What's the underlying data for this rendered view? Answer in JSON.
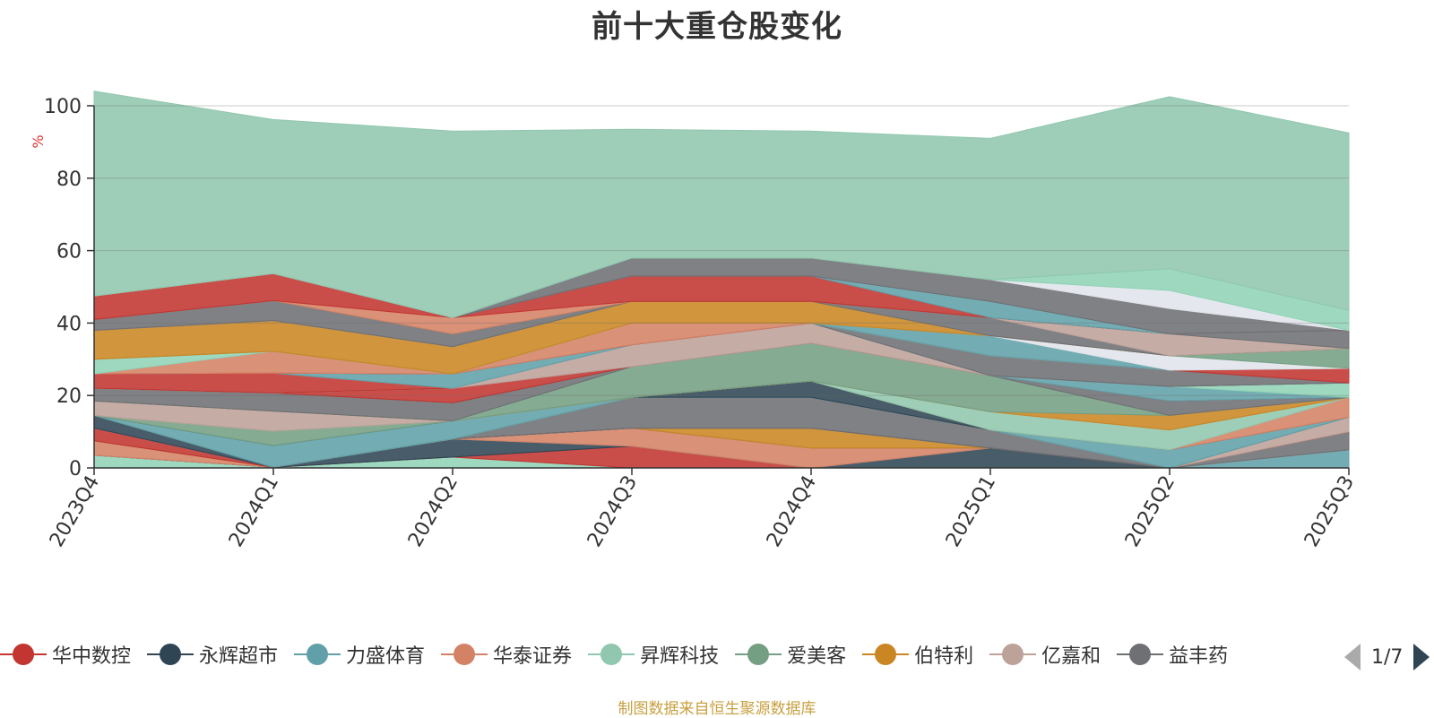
{
  "title": "前十大重仓股变化",
  "footnote": "制图数据来自恒生聚源数据库",
  "pager": {
    "text": "1/7"
  },
  "chart_data": {
    "type": "area",
    "stacked": true,
    "categories": [
      "2023Q4",
      "2024Q1",
      "2024Q2",
      "2024Q3",
      "2024Q4",
      "2025Q1",
      "2025Q2",
      "2025Q3"
    ],
    "ylabel": "%",
    "ylim": [
      0,
      100
    ],
    "yticks": [
      0,
      20,
      40,
      60,
      80,
      100
    ],
    "legend_position": "bottom",
    "legend": [
      "华中数控",
      "永辉超市",
      "力盛体育",
      "华泰证券",
      "昇辉科技",
      "爱美客",
      "伯特利",
      "亿嘉和",
      "益丰药"
    ],
    "series": [
      {
        "name": "",
        "color": "#8fd3b6",
        "values": [
          3.5,
          0.2,
          3.0,
          0.0,
          0.0,
          0.0,
          0.0,
          0.0
        ]
      },
      {
        "name": "",
        "color": "#c23531",
        "values": [
          0.0,
          0.0,
          0.0,
          6.0,
          0.0,
          0.0,
          0.0,
          0.0
        ]
      },
      {
        "name": "",
        "color": "#2f4554",
        "values": [
          0.0,
          0.0,
          5.0,
          0.0,
          0.0,
          5.5,
          0.0,
          0.0
        ]
      },
      {
        "name": "",
        "color": "#61a0a8",
        "values": [
          0.0,
          0.0,
          0.0,
          0.0,
          0.0,
          0.0,
          0.0,
          5.0
        ]
      },
      {
        "name": "",
        "color": "#d48265",
        "values": [
          4.0,
          0.0,
          0.0,
          5.0,
          5.5,
          0.0,
          0.0,
          0.0
        ]
      },
      {
        "name": "",
        "color": "#6e7074",
        "values": [
          0.0,
          0.0,
          0.0,
          0.0,
          0.0,
          0.0,
          0.0,
          5.0
        ]
      },
      {
        "name": "",
        "color": "#ca8622",
        "values": [
          0.0,
          0.0,
          0.0,
          0.0,
          5.5,
          0.0,
          0.0,
          0.0
        ]
      },
      {
        "name": "",
        "color": "#c23531",
        "values": [
          3.5,
          0.0,
          0.0,
          0.0,
          0.0,
          0.0,
          0.0,
          0.0
        ]
      },
      {
        "name": "",
        "color": "#bda29a",
        "values": [
          0.0,
          0.0,
          0.0,
          0.0,
          0.0,
          0.0,
          0.0,
          4.0
        ]
      },
      {
        "name": "",
        "color": "#2f4554",
        "values": [
          3.5,
          0.0,
          0.0,
          0.0,
          0.0,
          0.0,
          0.0,
          0.0
        ]
      },
      {
        "name": "",
        "color": "#6e7074",
        "values": [
          0.0,
          0.0,
          0.0,
          8.5,
          8.5,
          5.0,
          0.0,
          0.0
        ]
      },
      {
        "name": "",
        "color": "#91c7ae",
        "values": [
          0.0,
          0.0,
          0.0,
          0.0,
          0.0,
          0.0,
          0.0,
          0.0
        ]
      },
      {
        "name": "",
        "color": "#61a0a8",
        "values": [
          0.0,
          6.0,
          5.0,
          0.0,
          0.0,
          0.0,
          5.0,
          0.0
        ]
      },
      {
        "name": "",
        "color": "#2f4554",
        "values": [
          0.0,
          0.0,
          0.0,
          0.0,
          4.5,
          0.0,
          0.0,
          0.0
        ]
      },
      {
        "name": "",
        "color": "#749f83",
        "values": [
          0.0,
          4.0,
          0.0,
          0.0,
          0.0,
          0.0,
          0.0,
          0.0
        ]
      },
      {
        "name": "",
        "color": "#d48265",
        "values": [
          0.0,
          0.0,
          0.0,
          0.0,
          0.0,
          0.0,
          0.0,
          5.5
        ]
      },
      {
        "name": "",
        "color": "#91c7ae",
        "values": [
          0.0,
          0.0,
          0.0,
          0.0,
          0.0,
          5.0,
          5.5,
          0.0
        ]
      },
      {
        "name": "",
        "color": "#bda29a",
        "values": [
          4.0,
          5.5,
          0.0,
          0.0,
          0.0,
          0.0,
          0.0,
          0.0
        ]
      },
      {
        "name": "",
        "color": "#ca8622",
        "values": [
          0.0,
          0.0,
          0.0,
          0.0,
          0.0,
          0.0,
          4.0,
          0.0
        ]
      },
      {
        "name": "",
        "color": "#749f83",
        "values": [
          0.0,
          0.0,
          0.0,
          8.5,
          10.5,
          10.0,
          0.0,
          0.0
        ]
      },
      {
        "name": "",
        "color": "#6e7074",
        "values": [
          3.5,
          5.0,
          5.0,
          0.0,
          0.0,
          0.0,
          4.0,
          0.0
        ]
      },
      {
        "name": "",
        "color": "#c23531",
        "values": [
          0.0,
          0.0,
          4.0,
          0.0,
          0.0,
          0.0,
          0.0,
          0.0
        ]
      },
      {
        "name": "",
        "color": "#61a0a8",
        "values": [
          0.0,
          0.0,
          0.0,
          0.0,
          0.0,
          0.0,
          4.0,
          0.0
        ]
      },
      {
        "name": "",
        "color": "#8fd3b6",
        "values": [
          0.0,
          0.0,
          0.0,
          0.0,
          0.0,
          0.0,
          0.0,
          4.0
        ]
      },
      {
        "name": "",
        "color": "#c23531",
        "values": [
          4.0,
          5.5,
          0.0,
          0.0,
          0.0,
          0.0,
          0.0,
          0.0
        ]
      },
      {
        "name": "",
        "color": "#bda29a",
        "values": [
          0.0,
          0.0,
          0.0,
          6.0,
          5.5,
          0.0,
          0.0,
          0.0
        ]
      },
      {
        "name": "",
        "color": "#61a0a8",
        "values": [
          0.0,
          0.0,
          4.0,
          0.0,
          0.0,
          0.0,
          0.0,
          0.0
        ]
      },
      {
        "name": "",
        "color": "#6e7074",
        "values": [
          0.0,
          0.0,
          0.0,
          0.0,
          0.0,
          5.5,
          4.5,
          0.0
        ]
      },
      {
        "name": "",
        "color": "#c23531",
        "values": [
          0.0,
          0.0,
          0.0,
          0.0,
          0.0,
          0.0,
          0.0,
          4.0
        ]
      },
      {
        "name": "",
        "color": "#d48265",
        "values": [
          0.0,
          6.0,
          0.0,
          6.0,
          0.0,
          0.0,
          0.0,
          0.0
        ]
      },
      {
        "name": "",
        "color": "#8fd3b6",
        "values": [
          4.0,
          0.0,
          0.0,
          0.0,
          0.0,
          0.0,
          0.0,
          0.0
        ]
      },
      {
        "name": "",
        "color": "#61a0a8",
        "values": [
          0.0,
          0.0,
          0.0,
          0.0,
          0.0,
          5.5,
          0.0,
          0.0
        ]
      },
      {
        "name": "",
        "color": "#e0e4ea",
        "values": [
          0.0,
          0.0,
          0.0,
          0.0,
          0.0,
          0.0,
          4.0,
          0.0
        ]
      },
      {
        "name": "",
        "color": "#749f83",
        "values": [
          0.0,
          0.0,
          0.0,
          0.0,
          0.0,
          0.0,
          0.0,
          5.5
        ]
      },
      {
        "name": "",
        "color": "#ca8622",
        "values": [
          8.0,
          8.5,
          7.5,
          6.0,
          6.0,
          0.0,
          0.0,
          0.0
        ]
      },
      {
        "name": "",
        "color": "#6e7074",
        "values": [
          0.0,
          0.0,
          0.0,
          0.0,
          0.0,
          5.0,
          0.0,
          0.0
        ]
      },
      {
        "name": "",
        "color": "#bda29a",
        "values": [
          0.0,
          0.0,
          0.0,
          0.0,
          0.0,
          0.0,
          6.0,
          0.0
        ]
      },
      {
        "name": "",
        "color": "#6e7074",
        "values": [
          3.0,
          5.5,
          3.5,
          0.0,
          0.0,
          0.0,
          0.0,
          5.0
        ]
      },
      {
        "name": "",
        "color": "#d48265",
        "values": [
          0.0,
          0.0,
          4.5,
          0.0,
          0.0,
          0.0,
          0.0,
          0.0
        ]
      },
      {
        "name": "",
        "color": "#c23531",
        "values": [
          6.5,
          7.5,
          0.0,
          7.0,
          7.0,
          0.0,
          0.0,
          0.0
        ]
      },
      {
        "name": "",
        "color": "#61a0a8",
        "values": [
          0.0,
          0.0,
          0.0,
          0.0,
          0.0,
          4.5,
          0.0,
          0.0
        ]
      },
      {
        "name": "",
        "color": "#6e7074",
        "values": [
          0.0,
          0.0,
          0.0,
          5.0,
          5.0,
          6.0,
          7.0,
          0.0
        ]
      },
      {
        "name": "",
        "color": "#e0e4ea",
        "values": [
          0.0,
          0.0,
          0.0,
          0.0,
          0.0,
          0.0,
          5.0,
          0.0
        ]
      },
      {
        "name": "",
        "color": "#8fd3b6",
        "values": [
          0.0,
          0.0,
          0.0,
          0.0,
          0.0,
          0.0,
          6.0,
          5.5
        ]
      },
      {
        "name": "",
        "color": "#91c7ae",
        "values": [
          56.5,
          42.5,
          51.5,
          35.5,
          35.0,
          39.0,
          47.5,
          49.0
        ]
      }
    ]
  }
}
